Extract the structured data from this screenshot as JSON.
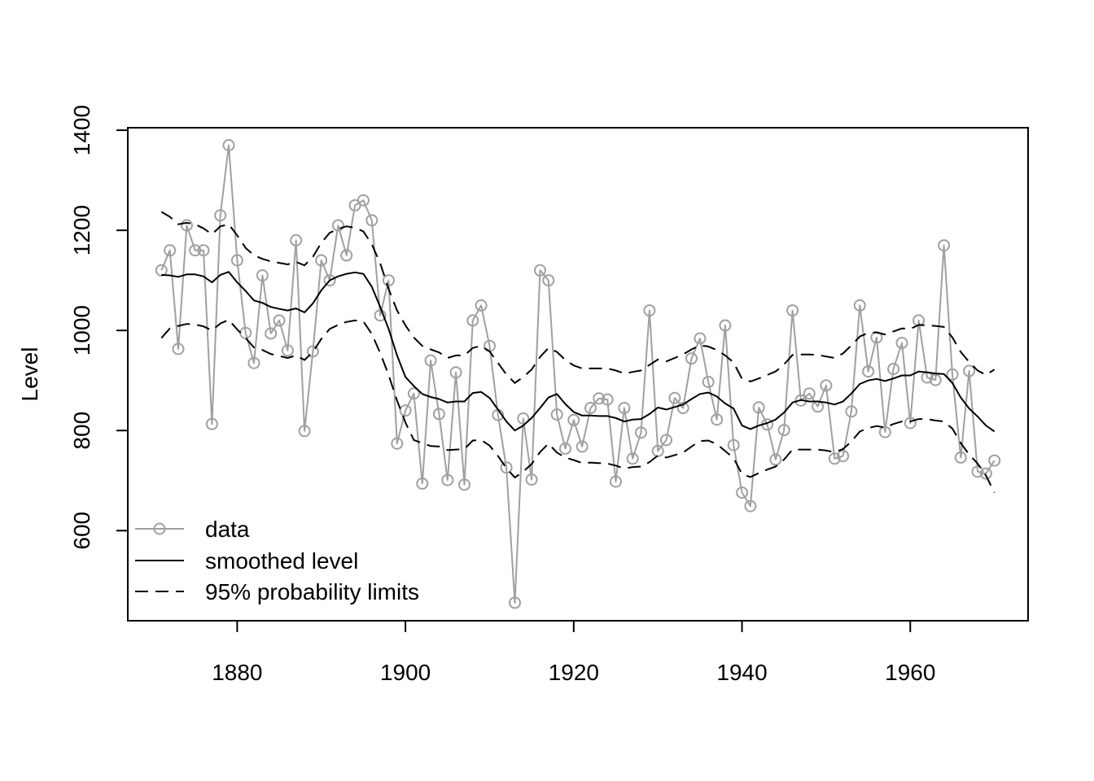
{
  "chart_data": {
    "type": "line",
    "title": "",
    "xlabel": "",
    "ylabel": "Level",
    "xlim": [
      1867,
      1974
    ],
    "ylim": [
      420,
      1405
    ],
    "xticks": [
      1880,
      1900,
      1920,
      1940,
      1960
    ],
    "yticks": [
      600,
      800,
      1000,
      1200,
      1400
    ],
    "grid": false,
    "legend_position": "bottom-left",
    "x": [
      1871,
      1872,
      1873,
      1874,
      1875,
      1876,
      1877,
      1878,
      1879,
      1880,
      1881,
      1882,
      1883,
      1884,
      1885,
      1886,
      1887,
      1888,
      1889,
      1890,
      1891,
      1892,
      1893,
      1894,
      1895,
      1896,
      1897,
      1898,
      1899,
      1900,
      1901,
      1902,
      1903,
      1904,
      1905,
      1906,
      1907,
      1908,
      1909,
      1910,
      1911,
      1912,
      1913,
      1914,
      1915,
      1916,
      1917,
      1918,
      1919,
      1920,
      1921,
      1922,
      1923,
      1924,
      1925,
      1926,
      1927,
      1928,
      1929,
      1930,
      1931,
      1932,
      1933,
      1934,
      1935,
      1936,
      1937,
      1938,
      1939,
      1940,
      1941,
      1942,
      1943,
      1944,
      1945,
      1946,
      1947,
      1948,
      1949,
      1950,
      1951,
      1952,
      1953,
      1954,
      1955,
      1956,
      1957,
      1958,
      1959,
      1960,
      1961,
      1962,
      1963,
      1964,
      1965,
      1966,
      1967,
      1968,
      1969,
      1970
    ],
    "series": [
      {
        "name": "data",
        "style": "points-line",
        "color": "#a0a0a0",
        "values": [
          1120,
          1160,
          963,
          1210,
          1160,
          1160,
          813,
          1230,
          1370,
          1140,
          995,
          935,
          1110,
          994,
          1020,
          960,
          1180,
          799,
          958,
          1140,
          1100,
          1210,
          1150,
          1250,
          1260,
          1220,
          1030,
          1100,
          774,
          840,
          874,
          694,
          940,
          833,
          701,
          916,
          692,
          1020,
          1050,
          969,
          831,
          726,
          456,
          824,
          702,
          1120,
          1100,
          832,
          764,
          821,
          768,
          845,
          864,
          862,
          698,
          845,
          744,
          796,
          1040,
          759,
          781,
          865,
          845,
          944,
          984,
          897,
          822,
          1010,
          771,
          676,
          649,
          846,
          812,
          742,
          801,
          1040,
          860,
          874,
          848,
          890,
          744,
          749,
          838,
          1050,
          918,
          986,
          797,
          923,
          975,
          815,
          1020,
          906,
          901,
          1170,
          912,
          746,
          919,
          718,
          714,
          740
        ]
      },
      {
        "name": "smoothed level",
        "style": "solid",
        "color": "#000000",
        "values": [
          1111,
          1110,
          1107,
          1112,
          1112,
          1108,
          1096,
          1111,
          1117,
          1096,
          1079,
          1060,
          1055,
          1047,
          1043,
          1040,
          1044,
          1036,
          1054,
          1080,
          1100,
          1108,
          1113,
          1116,
          1113,
          1087,
          1047,
          1003,
          950,
          907,
          889,
          873,
          867,
          863,
          856,
          858,
          858,
          875,
          877,
          865,
          842,
          818,
          800,
          810,
          825,
          845,
          866,
          873,
          853,
          837,
          830,
          830,
          829,
          829,
          825,
          818,
          822,
          823,
          833,
          846,
          842,
          847,
          852,
          863,
          873,
          876,
          868,
          854,
          844,
          810,
          803,
          810,
          815,
          822,
          836,
          856,
          861,
          858,
          858,
          856,
          852,
          858,
          874,
          893,
          900,
          903,
          899,
          904,
          910,
          910,
          918,
          916,
          914,
          913,
          895,
          866,
          844,
          828,
          810,
          798
        ]
      },
      {
        "name": "95% probability limits",
        "style": "dashed",
        "color": "#000000",
        "values": [
          1237,
          1227,
          1212,
          1215,
          1212,
          1204,
          1192,
          1208,
          1212,
          1190,
          1165,
          1150,
          1143,
          1138,
          1135,
          1132,
          1137,
          1130,
          1147,
          1175,
          1195,
          1203,
          1208,
          1205,
          1198,
          1172,
          1134,
          1083,
          1040,
          1010,
          986,
          969,
          962,
          956,
          945,
          950,
          950,
          965,
          969,
          958,
          935,
          912,
          895,
          907,
          922,
          947,
          965,
          957,
          941,
          930,
          924,
          924,
          924,
          924,
          920,
          914,
          917,
          920,
          931,
          942,
          938,
          945,
          952,
          962,
          970,
          968,
          961,
          950,
          936,
          903,
          898,
          904,
          911,
          918,
          932,
          951,
          952,
          952,
          951,
          948,
          945,
          954,
          970,
          988,
          995,
          996,
          992,
          998,
          1004,
          1003,
          1011,
          1010,
          1009,
          1007,
          986,
          957,
          937,
          920,
          911,
          922
        ]
      },
      {
        "name": "95% probability limits",
        "style": "dashed",
        "color": "#000000",
        "values": [
          985,
          1004,
          1009,
          1013,
          1012,
          1008,
          1000,
          1014,
          1021,
          1002,
          985,
          966,
          961,
          953,
          949,
          945,
          950,
          941,
          957,
          983,
          1003,
          1011,
          1017,
          1020,
          1018,
          993,
          955,
          911,
          860,
          816,
          781,
          775,
          769,
          768,
          761,
          762,
          763,
          780,
          781,
          770,
          749,
          725,
          706,
          718,
          733,
          757,
          774,
          756,
          746,
          741,
          735,
          736,
          735,
          734,
          730,
          724,
          727,
          728,
          737,
          750,
          746,
          751,
          756,
          768,
          779,
          780,
          773,
          759,
          745,
          713,
          707,
          715,
          722,
          728,
          742,
          762,
          762,
          762,
          762,
          760,
          757,
          763,
          778,
          798,
          805,
          809,
          806,
          813,
          818,
          818,
          823,
          823,
          820,
          818,
          804,
          775,
          752,
          734,
          710,
          676
        ]
      }
    ],
    "legend": [
      {
        "label": "data",
        "style": "points-line",
        "color": "#a0a0a0"
      },
      {
        "label": "smoothed level",
        "style": "solid",
        "color": "#000000"
      },
      {
        "label": "95% probability limits",
        "style": "dashed",
        "color": "#000000"
      }
    ]
  }
}
